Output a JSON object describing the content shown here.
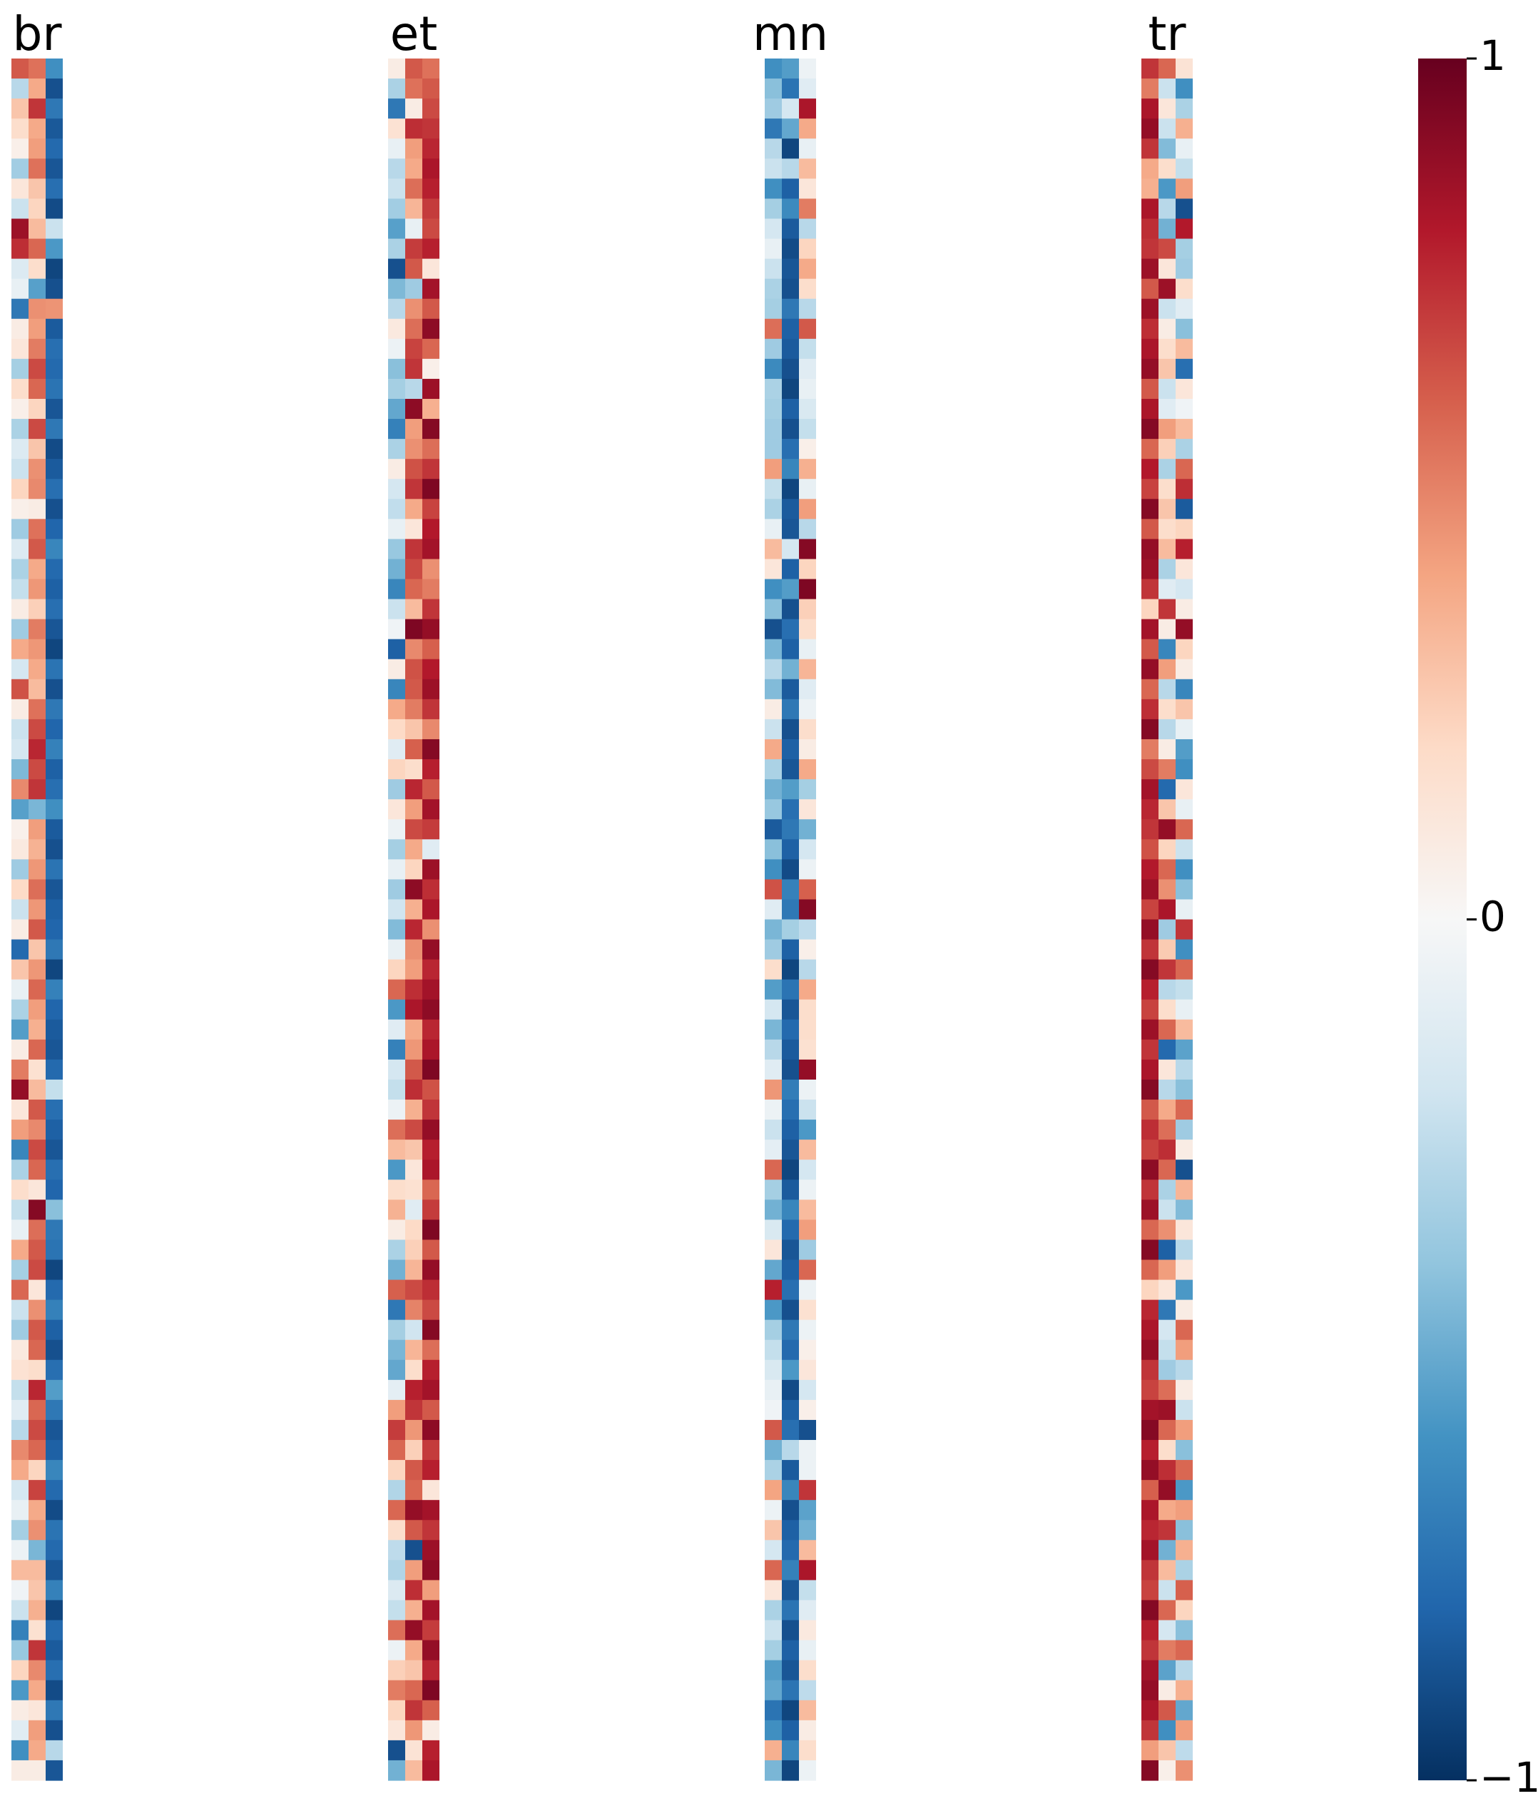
{
  "chart_data": {
    "type": "heatmap",
    "panels": [
      {
        "title": "br",
        "columns": [
          [
            0.62,
            -0.28,
            0.28,
            0.18,
            0.06,
            -0.35,
            0.12,
            -0.22,
            0.86,
            0.74,
            -0.14,
            -0.08,
            -0.72,
            0.08,
            0.12,
            -0.34,
            0.18,
            0.06,
            -0.32,
            -0.14,
            -0.22,
            0.22,
            0.06,
            -0.36,
            -0.14,
            -0.32,
            -0.24,
            0.08,
            -0.36,
            0.38,
            -0.18,
            0.64,
            0.08,
            -0.22,
            -0.18,
            -0.45,
            0.48,
            -0.55,
            0.05,
            0.1,
            -0.36,
            0.2,
            -0.22,
            0.08,
            -0.78,
            0.28,
            -0.08,
            -0.32,
            -0.56,
            0.08,
            0.52,
            0.88,
            0.12,
            0.42,
            -0.66,
            -0.32,
            0.18,
            -0.24,
            -0.08,
            0.38,
            -0.34,
            0.58,
            -0.22,
            -0.36,
            0.1,
            0.15,
            -0.24,
            -0.12,
            -0.28,
            0.48,
            0.38,
            -0.18,
            -0.08,
            -0.34,
            -0.06,
            0.32,
            -0.04,
            -0.22,
            -0.68,
            -0.38,
            0.22,
            -0.58,
            0.08,
            -0.12,
            -0.62,
            0.08
          ],
          [
            0.55,
            0.38,
            0.72,
            0.38,
            0.42,
            0.55,
            0.28,
            0.22,
            0.32,
            0.58,
            0.18,
            -0.55,
            0.46,
            0.42,
            0.52,
            0.66,
            0.58,
            0.22,
            0.66,
            0.28,
            0.46,
            0.48,
            0.08,
            0.55,
            0.62,
            0.38,
            0.44,
            0.24,
            0.52,
            0.44,
            0.38,
            0.32,
            0.55,
            0.66,
            0.76,
            0.66,
            0.72,
            -0.46,
            0.42,
            0.35,
            0.44,
            0.56,
            0.44,
            0.62,
            0.28,
            0.44,
            0.58,
            0.42,
            0.36,
            0.58,
            0.16,
            0.32,
            0.62,
            0.48,
            0.66,
            0.58,
            0.12,
            0.92,
            0.56,
            0.62,
            0.66,
            0.12,
            0.46,
            0.62,
            0.58,
            0.18,
            0.76,
            0.58,
            0.66,
            0.58,
            0.22,
            0.68,
            0.38,
            0.46,
            -0.46,
            0.32,
            0.28,
            0.36,
            0.16,
            0.72,
            0.48,
            0.38,
            0.12,
            0.42,
            0.38,
            0.08
          ],
          [
            -0.62,
            -0.88,
            -0.72,
            -0.85,
            -0.78,
            -0.86,
            -0.76,
            -0.9,
            -0.22,
            -0.58,
            -0.92,
            -0.88,
            0.45,
            -0.84,
            -0.76,
            -0.78,
            -0.74,
            -0.86,
            -0.72,
            -0.9,
            -0.84,
            -0.76,
            -0.88,
            -0.8,
            -0.66,
            -0.78,
            -0.82,
            -0.76,
            -0.86,
            -0.92,
            -0.74,
            -0.88,
            -0.72,
            -0.8,
            -0.68,
            -0.82,
            -0.76,
            -0.62,
            -0.84,
            -0.88,
            -0.74,
            -0.86,
            -0.82,
            -0.8,
            -0.72,
            -0.92,
            -0.68,
            -0.8,
            -0.84,
            -0.86,
            -0.78,
            -0.24,
            -0.76,
            -0.82,
            -0.86,
            -0.76,
            -0.8,
            -0.42,
            -0.72,
            -0.74,
            -0.92,
            -0.78,
            -0.68,
            -0.82,
            -0.88,
            -0.76,
            -0.56,
            -0.72,
            -0.86,
            -0.82,
            -0.66,
            -0.78,
            -0.9,
            -0.74,
            -0.78,
            -0.86,
            -0.68,
            -0.92,
            -0.78,
            -0.84,
            -0.76,
            -0.9,
            -0.72,
            -0.88,
            -0.28,
            -0.86
          ]
        ]
      },
      {
        "title": "et",
        "columns": [
          [
            0.08,
            -0.32,
            -0.72,
            0.15,
            -0.08,
            -0.28,
            -0.22,
            -0.35,
            -0.55,
            -0.32,
            -0.88,
            -0.45,
            -0.28,
            0.1,
            -0.06,
            -0.42,
            -0.34,
            -0.52,
            -0.68,
            -0.32,
            0.08,
            -0.18,
            -0.25,
            -0.08,
            -0.38,
            -0.48,
            -0.66,
            -0.22,
            -0.04,
            -0.82,
            0.08,
            -0.66,
            0.38,
            0.2,
            -0.12,
            0.22,
            -0.36,
            0.12,
            -0.06,
            -0.34,
            -0.08,
            -0.36,
            -0.2,
            -0.44,
            -0.08,
            0.22,
            0.58,
            -0.58,
            -0.12,
            -0.68,
            -0.18,
            -0.24,
            -0.06,
            0.56,
            0.32,
            -0.58,
            0.18,
            0.35,
            0.08,
            -0.32,
            -0.48,
            0.6,
            -0.72,
            -0.34,
            -0.46,
            -0.52,
            -0.1,
            0.42,
            0.7,
            0.58,
            0.22,
            -0.3,
            0.58,
            0.18,
            -0.26,
            -0.3,
            -0.14,
            -0.24,
            0.56,
            -0.06,
            0.24,
            0.52,
            0.22,
            0.12,
            -0.88,
            -0.48
          ],
          [
            0.62,
            0.55,
            0.08,
            0.74,
            0.42,
            0.38,
            0.56,
            0.34,
            -0.08,
            0.7,
            0.62,
            -0.36,
            0.46,
            0.56,
            0.68,
            0.72,
            -0.28,
            0.9,
            0.42,
            0.46,
            0.64,
            0.72,
            0.38,
            0.12,
            0.72,
            0.66,
            0.58,
            0.32,
            0.94,
            0.48,
            0.64,
            0.62,
            0.52,
            0.28,
            0.6,
            0.18,
            0.76,
            0.42,
            0.66,
            0.38,
            0.22,
            0.9,
            0.36,
            0.76,
            0.46,
            0.42,
            0.74,
            0.82,
            0.38,
            0.44,
            0.62,
            0.74,
            0.36,
            0.66,
            0.28,
            0.12,
            0.16,
            -0.12,
            0.2,
            0.24,
            0.34,
            0.66,
            0.5,
            -0.2,
            0.34,
            0.18,
            0.78,
            0.72,
            0.44,
            0.24,
            0.62,
            0.58,
            0.88,
            0.62,
            -0.88,
            0.42,
            0.74,
            0.36,
            0.88,
            0.38,
            0.28,
            0.58,
            0.72,
            0.44,
            0.14,
            0.32
          ],
          [
            0.55,
            0.62,
            0.66,
            0.72,
            0.76,
            0.82,
            0.78,
            0.7,
            0.66,
            0.78,
            0.12,
            0.84,
            0.62,
            0.9,
            0.58,
            0.06,
            0.86,
            0.36,
            0.92,
            0.56,
            0.72,
            0.94,
            0.68,
            0.8,
            0.84,
            0.46,
            0.52,
            0.72,
            0.88,
            0.6,
            0.8,
            0.86,
            0.72,
            0.48,
            0.92,
            0.78,
            0.62,
            0.84,
            0.7,
            -0.12,
            0.86,
            0.74,
            0.82,
            0.46,
            0.88,
            0.76,
            0.84,
            0.9,
            0.76,
            0.82,
            0.94,
            0.64,
            0.72,
            0.88,
            0.78,
            0.82,
            0.58,
            0.7,
            0.94,
            0.62,
            0.88,
            0.74,
            0.66,
            0.92,
            0.56,
            0.78,
            0.84,
            0.62,
            0.9,
            0.7,
            0.78,
            0.12,
            0.84,
            0.72,
            0.86,
            0.9,
            0.42,
            0.84,
            0.7,
            0.88,
            0.76,
            0.94,
            0.6,
            0.08,
            0.78,
            0.82
          ]
        ]
      },
      {
        "title": "mn",
        "columns": [
          [
            -0.62,
            -0.42,
            -0.36,
            -0.72,
            -0.28,
            -0.22,
            -0.62,
            -0.34,
            -0.18,
            -0.08,
            -0.22,
            -0.32,
            -0.34,
            0.56,
            -0.36,
            -0.64,
            -0.32,
            -0.34,
            -0.36,
            -0.36,
            0.42,
            -0.24,
            -0.32,
            -0.08,
            0.32,
            0.12,
            -0.62,
            -0.42,
            -0.88,
            -0.46,
            -0.28,
            -0.44,
            0.08,
            -0.22,
            0.38,
            -0.32,
            -0.48,
            -0.38,
            -0.84,
            -0.42,
            -0.62,
            0.64,
            -0.12,
            -0.46,
            -0.36,
            0.18,
            -0.56,
            -0.18,
            -0.46,
            -0.28,
            -0.12,
            0.44,
            -0.06,
            -0.22,
            -0.1,
            0.58,
            -0.34,
            -0.48,
            -0.16,
            0.12,
            -0.52,
            0.78,
            -0.58,
            -0.34,
            -0.24,
            -0.16,
            -0.08,
            -0.04,
            0.62,
            -0.48,
            -0.32,
            0.4,
            -0.06,
            0.28,
            -0.18,
            0.58,
            0.12,
            -0.32,
            -0.22,
            -0.34,
            -0.56,
            -0.52,
            -0.74,
            -0.62,
            0.36,
            -0.46
          ],
          [
            -0.56,
            -0.74,
            -0.18,
            -0.52,
            -0.92,
            -0.28,
            -0.82,
            -0.64,
            -0.84,
            -0.9,
            -0.86,
            -0.88,
            -0.72,
            -0.82,
            -0.84,
            -0.88,
            -0.92,
            -0.82,
            -0.88,
            -0.76,
            -0.66,
            -0.92,
            -0.84,
            -0.86,
            -0.18,
            -0.82,
            -0.56,
            -0.88,
            -0.76,
            -0.82,
            -0.48,
            -0.84,
            -0.72,
            -0.88,
            -0.82,
            -0.86,
            -0.56,
            -0.76,
            -0.72,
            -0.82,
            -0.9,
            -0.68,
            -0.72,
            -0.34,
            -0.82,
            -0.92,
            -0.74,
            -0.86,
            -0.78,
            -0.84,
            -0.88,
            -0.7,
            -0.76,
            -0.82,
            -0.86,
            -0.92,
            -0.84,
            -0.66,
            -0.78,
            -0.86,
            -0.82,
            -0.76,
            -0.88,
            -0.72,
            -0.78,
            -0.58,
            -0.9,
            -0.82,
            -0.76,
            -0.28,
            -0.84,
            -0.66,
            -0.88,
            -0.82,
            -0.78,
            -0.68,
            -0.86,
            -0.74,
            -0.88,
            -0.82,
            -0.86,
            -0.74,
            -0.92,
            -0.82,
            -0.66,
            -0.92
          ],
          [
            -0.06,
            -0.12,
            0.82,
            0.38,
            -0.08,
            0.32,
            0.12,
            0.52,
            -0.28,
            0.22,
            0.38,
            0.18,
            -0.28,
            0.62,
            -0.24,
            -0.12,
            -0.08,
            -0.16,
            -0.24,
            0.06,
            0.36,
            -0.08,
            0.42,
            -0.28,
            0.92,
            0.22,
            0.94,
            0.24,
            0.18,
            -0.08,
            0.34,
            -0.12,
            -0.06,
            0.18,
            0.08,
            0.38,
            -0.34,
            0.12,
            -0.48,
            -0.18,
            -0.06,
            0.6,
            0.92,
            -0.26,
            0.06,
            -0.28,
            0.38,
            0.18,
            0.18,
            0.16,
            0.88,
            -0.06,
            -0.22,
            -0.58,
            0.32,
            -0.18,
            -0.06,
            0.32,
            0.42,
            -0.36,
            0.58,
            -0.06,
            0.16,
            -0.06,
            0.06,
            0.12,
            -0.18,
            0.06,
            -0.88,
            -0.06,
            -0.06,
            0.72,
            -0.54,
            -0.48,
            0.32,
            0.82,
            -0.24,
            -0.12,
            0.1,
            -0.08,
            0.18,
            -0.26,
            0.32,
            0.08,
            0.18,
            -0.06
          ]
        ]
      },
      {
        "title": "tr",
        "columns": [
          [
            0.72,
            0.52,
            0.82,
            0.88,
            0.72,
            0.38,
            0.36,
            0.82,
            0.74,
            0.72,
            0.86,
            0.62,
            0.86,
            0.74,
            0.82,
            0.88,
            0.62,
            0.82,
            0.92,
            0.58,
            0.8,
            0.68,
            0.92,
            0.62,
            0.88,
            0.86,
            0.72,
            0.22,
            0.84,
            0.62,
            0.88,
            0.58,
            0.74,
            0.92,
            0.52,
            0.66,
            0.84,
            0.76,
            0.72,
            0.64,
            0.8,
            0.86,
            0.68,
            0.88,
            0.72,
            0.92,
            0.78,
            0.68,
            0.86,
            0.72,
            0.82,
            0.92,
            0.62,
            0.74,
            0.68,
            0.9,
            0.72,
            0.86,
            0.58,
            0.92,
            0.58,
            0.22,
            0.76,
            0.82,
            0.88,
            0.72,
            0.68,
            0.84,
            0.92,
            0.78,
            0.88,
            0.6,
            0.82,
            0.76,
            0.84,
            0.72,
            0.68,
            0.92,
            0.78,
            0.72,
            0.84,
            0.88,
            0.82,
            0.72,
            0.42,
            0.92
          ],
          [
            0.58,
            -0.22,
            0.12,
            -0.22,
            -0.44,
            0.18,
            -0.58,
            -0.28,
            -0.48,
            0.66,
            0.12,
            0.86,
            -0.22,
            0.08,
            0.18,
            0.28,
            -0.22,
            -0.12,
            0.42,
            0.24,
            -0.32,
            0.18,
            0.28,
            0.18,
            0.32,
            -0.32,
            -0.12,
            0.72,
            0.08,
            -0.66,
            0.42,
            -0.28,
            0.18,
            -0.28,
            0.08,
            0.52,
            -0.78,
            0.28,
            0.88,
            0.22,
            0.58,
            0.46,
            0.82,
            -0.36,
            0.26,
            0.72,
            -0.28,
            0.18,
            0.58,
            -0.78,
            0.12,
            -0.28,
            0.38,
            0.56,
            0.74,
            0.58,
            -0.32,
            -0.22,
            0.46,
            -0.82,
            0.42,
            0.12,
            -0.72,
            -0.18,
            -0.24,
            -0.36,
            0.56,
            0.86,
            0.58,
            0.18,
            0.74,
            0.88,
            0.38,
            0.72,
            -0.48,
            0.32,
            -0.22,
            0.58,
            -0.18,
            0.52,
            -0.54,
            0.08,
            0.62,
            -0.62,
            0.28,
            0.06
          ],
          [
            0.14,
            -0.62,
            -0.32,
            0.36,
            -0.08,
            -0.24,
            0.42,
            -0.88,
            0.8,
            -0.34,
            -0.36,
            0.18,
            -0.12,
            -0.42,
            0.32,
            -0.76,
            0.12,
            -0.04,
            0.32,
            -0.32,
            0.58,
            0.74,
            -0.84,
            0.22,
            0.78,
            0.12,
            -0.18,
            0.08,
            0.88,
            0.22,
            0.08,
            -0.66,
            0.28,
            -0.08,
            -0.56,
            -0.62,
            0.12,
            -0.08,
            0.58,
            -0.22,
            -0.62,
            -0.42,
            -0.08,
            0.72,
            -0.62,
            0.58,
            -0.24,
            -0.08,
            0.32,
            -0.54,
            -0.28,
            -0.42,
            0.58,
            -0.36,
            0.08,
            -0.88,
            0.34,
            -0.44,
            0.12,
            -0.28,
            0.12,
            -0.58,
            0.08,
            0.58,
            0.42,
            -0.28,
            0.08,
            -0.22,
            0.42,
            -0.42,
            0.58,
            -0.58,
            0.42,
            -0.42,
            0.36,
            -0.32,
            0.6,
            0.22,
            -0.42,
            0.58,
            -0.28,
            0.36,
            -0.52,
            0.42,
            -0.26,
            0.46
          ]
        ]
      }
    ],
    "colorbar": {
      "cmap": "RdBu_r",
      "vmin": -1,
      "vmax": 1,
      "tick_values": [
        1,
        0,
        -1
      ],
      "tick_labels": [
        "1",
        "0",
        "−1"
      ]
    },
    "axes_visible": false,
    "grid": false
  }
}
